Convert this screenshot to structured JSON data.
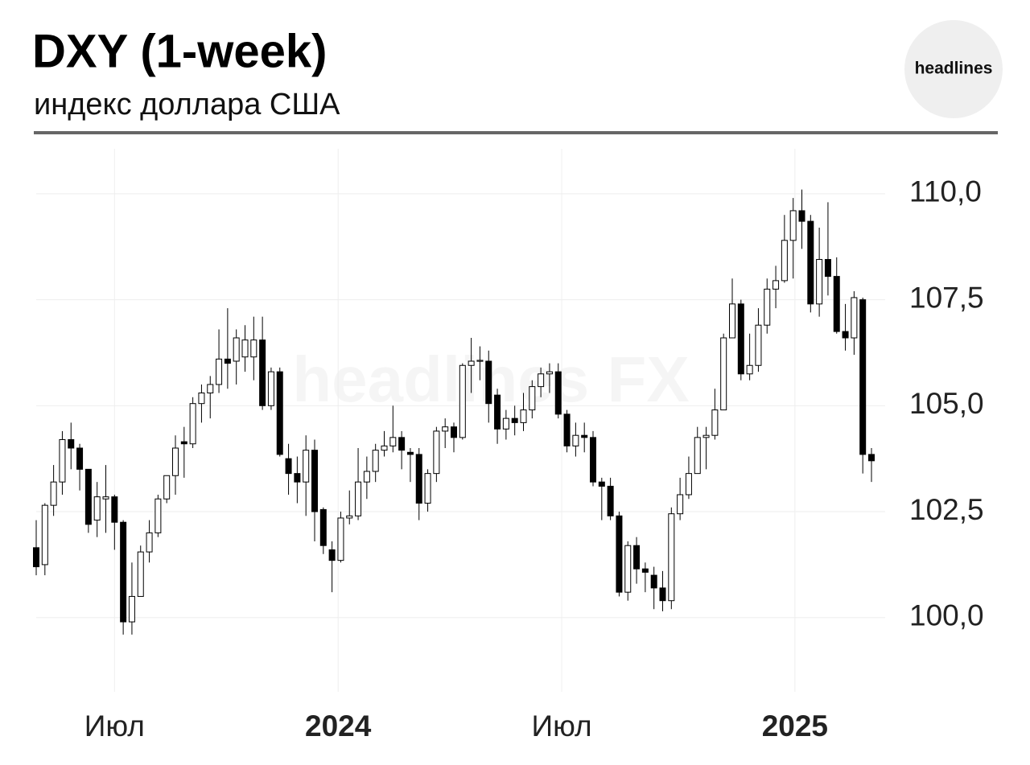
{
  "header": {
    "title": "DXY (1-week)",
    "subtitle": "индекс доллара США",
    "logo": "headlines",
    "watermark": "headlines FX"
  },
  "chart_data": {
    "type": "candlestick",
    "up_color": "#ffffff",
    "down_color": "#000000",
    "grid": true,
    "open": [
      101.65,
      101.25,
      102.65,
      103.2,
      104.2,
      104.0,
      103.5,
      102.3,
      102.8,
      102.85,
      102.25,
      99.9,
      100.5,
      101.55,
      102.0,
      102.8,
      103.35,
      104.15,
      104.1,
      105.05,
      105.3,
      105.5,
      106.1,
      106.05,
      106.15,
      106.15,
      106.55,
      105.0,
      105.8,
      103.75,
      103.4,
      103.2,
      103.95,
      102.55,
      101.6,
      101.35,
      102.35,
      102.4,
      103.2,
      103.45,
      103.95,
      104.05,
      104.25,
      103.9,
      103.85,
      102.7,
      103.4,
      104.4,
      104.5,
      104.25,
      105.95,
      106.05,
      106.05,
      105.25,
      104.45,
      104.7,
      104.6,
      104.9,
      105.45,
      105.75,
      105.8,
      104.8,
      104.05,
      104.3,
      104.25,
      103.2,
      103.1,
      102.4,
      100.6,
      101.7,
      101.15,
      101.0,
      100.7,
      100.4,
      102.45,
      102.9,
      103.4,
      104.25,
      104.3,
      104.9,
      106.6,
      107.4,
      105.75,
      105.95,
      106.9,
      107.75,
      107.95,
      108.9,
      109.6,
      109.35,
      107.4,
      108.45,
      108.05,
      106.75,
      106.6,
      107.5,
      103.85
    ],
    "high": [
      102.3,
      102.7,
      103.6,
      104.4,
      104.6,
      104.1,
      103.5,
      103.2,
      103.6,
      102.9,
      102.3,
      101.3,
      101.7,
      102.3,
      102.9,
      103.35,
      104.3,
      104.5,
      105.2,
      105.5,
      105.7,
      106.8,
      107.3,
      106.8,
      106.9,
      107.1,
      107.1,
      105.9,
      105.9,
      104.1,
      103.8,
      104.3,
      104.2,
      102.6,
      101.8,
      102.5,
      103.0,
      104.0,
      103.8,
      104.1,
      104.4,
      105.0,
      104.4,
      104.0,
      104.0,
      103.5,
      104.5,
      104.7,
      104.6,
      106.0,
      106.6,
      106.4,
      106.3,
      105.4,
      104.9,
      105.0,
      105.3,
      105.6,
      105.9,
      106.0,
      106.0,
      104.9,
      104.6,
      104.6,
      104.4,
      103.3,
      103.3,
      102.5,
      101.8,
      101.9,
      101.3,
      101.2,
      101.1,
      102.6,
      103.3,
      103.8,
      104.5,
      104.5,
      105.4,
      106.7,
      108.0,
      107.5,
      106.7,
      107.3,
      108.0,
      108.3,
      109.5,
      109.9,
      110.1,
      109.5,
      109.2,
      109.8,
      108.5,
      107.4,
      107.7,
      107.55,
      104.0
    ],
    "low": [
      101.0,
      101.0,
      102.4,
      102.9,
      103.5,
      103.0,
      102.0,
      101.9,
      102.0,
      101.6,
      99.6,
      99.6,
      100.5,
      101.3,
      101.9,
      102.7,
      102.9,
      103.3,
      104.0,
      104.6,
      104.7,
      105.3,
      105.4,
      105.5,
      105.8,
      105.6,
      104.9,
      104.9,
      103.8,
      102.9,
      102.7,
      102.4,
      101.8,
      101.5,
      100.6,
      101.3,
      102.2,
      102.3,
      102.8,
      103.2,
      103.8,
      103.9,
      103.5,
      103.2,
      102.3,
      102.5,
      103.2,
      104.0,
      103.9,
      104.2,
      105.3,
      105.6,
      104.6,
      104.1,
      104.2,
      104.3,
      104.4,
      104.7,
      105.2,
      105.3,
      104.7,
      103.9,
      103.8,
      103.9,
      103.1,
      102.3,
      102.3,
      100.5,
      100.4,
      100.8,
      100.6,
      100.2,
      100.15,
      100.2,
      102.3,
      102.8,
      103.4,
      103.5,
      104.2,
      104.9,
      106.6,
      105.6,
      105.6,
      105.8,
      106.7,
      107.3,
      107.9,
      108.0,
      108.7,
      107.2,
      107.1,
      107.6,
      106.7,
      106.3,
      106.2,
      103.4,
      103.2
    ],
    "close": [
      101.2,
      102.65,
      103.2,
      104.2,
      104.0,
      103.5,
      102.2,
      102.85,
      102.85,
      102.25,
      99.9,
      100.5,
      101.55,
      102.0,
      102.8,
      103.35,
      104.0,
      104.1,
      105.05,
      105.3,
      105.5,
      106.1,
      106.0,
      106.6,
      106.55,
      106.55,
      105.0,
      105.8,
      103.85,
      103.4,
      103.2,
      103.95,
      102.5,
      101.7,
      101.35,
      102.35,
      102.4,
      103.2,
      103.45,
      103.95,
      104.05,
      104.25,
      103.95,
      103.85,
      102.7,
      103.4,
      104.4,
      104.5,
      104.25,
      105.95,
      106.05,
      106.07,
      105.05,
      104.45,
      104.7,
      104.6,
      104.9,
      105.45,
      105.75,
      105.8,
      104.8,
      104.05,
      104.3,
      104.25,
      103.2,
      103.1,
      102.4,
      100.6,
      101.7,
      101.15,
      101.07,
      100.7,
      100.4,
      102.45,
      102.9,
      103.4,
      104.25,
      104.3,
      104.9,
      106.6,
      107.4,
      105.75,
      105.95,
      106.9,
      107.75,
      107.95,
      108.9,
      109.6,
      109.35,
      107.4,
      108.45,
      108.05,
      106.75,
      106.6,
      107.55,
      103.85,
      103.7
    ],
    "xlim": [
      0,
      96
    ],
    "xticks": [
      {
        "value": 9,
        "label": "Июл"
      },
      {
        "value": 34.7,
        "label": "2024"
      },
      {
        "value": 60.4,
        "label": "Июл"
      },
      {
        "value": 87.2,
        "label": "2025"
      }
    ],
    "ylim": [
      98.25,
      111.06
    ],
    "yticks": [
      {
        "value": 100,
        "label": "100,0"
      },
      {
        "value": 102.5,
        "label": "102,5"
      },
      {
        "value": 105,
        "label": "105,0"
      },
      {
        "value": 107.5,
        "label": "107,5"
      },
      {
        "value": 110,
        "label": "110,0"
      }
    ]
  }
}
